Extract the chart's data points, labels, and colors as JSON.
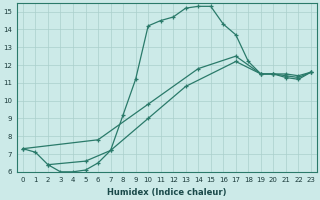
{
  "xlabel": "Humidex (Indice chaleur)",
  "ylabel": "",
  "xlim": [
    -0.5,
    23.5
  ],
  "ylim": [
    6,
    15.5
  ],
  "xticks": [
    0,
    1,
    2,
    3,
    4,
    5,
    6,
    7,
    8,
    9,
    10,
    11,
    12,
    13,
    14,
    15,
    16,
    17,
    18,
    19,
    20,
    21,
    22,
    23
  ],
  "yticks": [
    6,
    7,
    8,
    9,
    10,
    11,
    12,
    13,
    14,
    15
  ],
  "line_color": "#2a7a6a",
  "bg_color": "#cceae8",
  "grid_color": "#aacfcc",
  "line1_x": [
    0,
    1,
    2,
    3,
    4,
    5,
    6,
    7,
    8,
    9,
    10,
    11,
    12,
    13,
    14,
    15,
    16,
    17,
    18,
    19,
    20,
    21,
    22,
    23
  ],
  "line1_y": [
    7.3,
    7.1,
    6.4,
    6.0,
    6.0,
    6.1,
    6.5,
    7.2,
    9.2,
    11.2,
    14.2,
    14.5,
    14.7,
    15.2,
    15.3,
    15.3,
    14.3,
    13.7,
    12.2,
    11.5,
    11.5,
    11.3,
    11.2,
    11.6
  ],
  "line2_x": [
    0,
    6,
    10,
    14,
    17,
    19,
    20,
    21,
    22,
    23
  ],
  "line2_y": [
    7.3,
    7.8,
    9.8,
    11.8,
    12.5,
    11.5,
    11.5,
    11.5,
    11.4,
    11.6
  ],
  "line3_x": [
    2,
    5,
    7,
    10,
    13,
    17,
    19,
    20,
    21,
    22,
    23
  ],
  "line3_y": [
    6.4,
    6.6,
    7.2,
    9.0,
    10.8,
    12.2,
    11.5,
    11.5,
    11.4,
    11.3,
    11.6
  ]
}
